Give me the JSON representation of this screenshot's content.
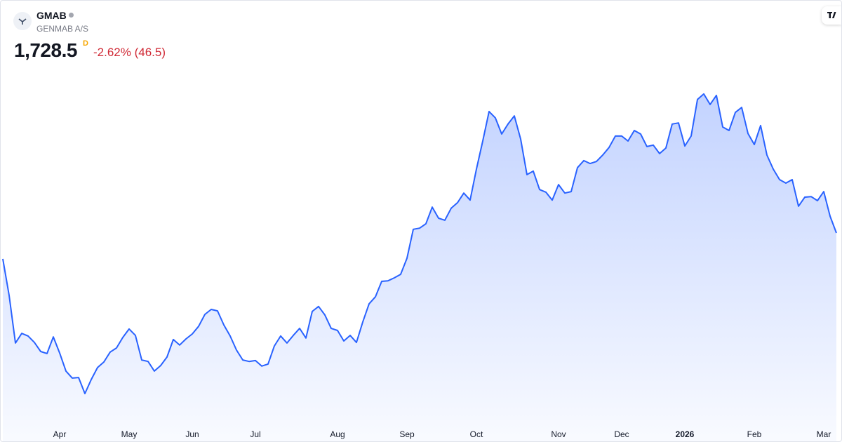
{
  "header": {
    "symbol": "GMAB",
    "name": "GENMAB A/S",
    "price": "1,728.5",
    "interval": "D",
    "change": "-2.62% (46.5)"
  },
  "chart_data": {
    "type": "area",
    "color": "#2962ff",
    "categories": [
      null,
      null,
      null,
      null,
      null,
      null,
      null,
      null,
      null,
      "Apr",
      null,
      null,
      null,
      null,
      null,
      null,
      null,
      null,
      null,
      null,
      "May",
      null,
      null,
      null,
      null,
      null,
      null,
      null,
      null,
      null,
      "Jun",
      null,
      null,
      null,
      null,
      null,
      null,
      null,
      null,
      null,
      "Jul",
      null,
      null,
      null,
      null,
      null,
      null,
      null,
      null,
      null,
      null,
      null,
      null,
      "Aug",
      null,
      null,
      null,
      null,
      null,
      null,
      null,
      null,
      null,
      null,
      "Sep",
      null,
      null,
      null,
      null,
      null,
      null,
      null,
      null,
      null,
      null,
      "Oct",
      null,
      null,
      null,
      null,
      null,
      null,
      null,
      null,
      null,
      null,
      null,
      null,
      "Nov",
      null,
      null,
      null,
      null,
      null,
      null,
      null,
      null,
      null,
      "Dec",
      null,
      null,
      null,
      null,
      null,
      null,
      null,
      null,
      null,
      "2026",
      null,
      null,
      null,
      null,
      null,
      null,
      null,
      null,
      null,
      null,
      "Feb",
      null,
      null,
      null,
      null,
      null,
      null,
      null,
      null,
      null,
      null,
      "Mar",
      null,
      null
    ],
    "values": [
      1640,
      1515,
      1352,
      1385,
      1376,
      1354,
      1323,
      1316,
      1373,
      1318,
      1256,
      1232,
      1234,
      1179,
      1227,
      1268,
      1287,
      1321,
      1335,
      1371,
      1400,
      1378,
      1294,
      1289,
      1256,
      1275,
      1304,
      1364,
      1345,
      1366,
      1383,
      1409,
      1450,
      1467,
      1462,
      1414,
      1376,
      1328,
      1294,
      1289,
      1292,
      1273,
      1280,
      1342,
      1376,
      1352,
      1378,
      1402,
      1369,
      1460,
      1477,
      1448,
      1402,
      1395,
      1359,
      1378,
      1354,
      1424,
      1486,
      1510,
      1563,
      1565,
      1575,
      1587,
      1642,
      1741,
      1745,
      1760,
      1817,
      1779,
      1772,
      1813,
      1832,
      1865,
      1841,
      1947,
      2043,
      2144,
      2122,
      2067,
      2101,
      2129,
      2050,
      1928,
      1940,
      1877,
      1868,
      1841,
      1894,
      1865,
      1870,
      1952,
      1976,
      1966,
      1973,
      1995,
      2021,
      2060,
      2060,
      2043,
      2079,
      2067,
      2024,
      2029,
      2000,
      2019,
      2101,
      2105,
      2026,
      2060,
      2185,
      2204,
      2168,
      2199,
      2091,
      2079,
      2141,
      2158,
      2069,
      2031,
      2096,
      1995,
      1947,
      1911,
      1899,
      1911,
      1820,
      1851,
      1853,
      1839,
      1870,
      1786,
      1728.5
    ],
    "ylim": [
      1083,
      2427
    ]
  }
}
